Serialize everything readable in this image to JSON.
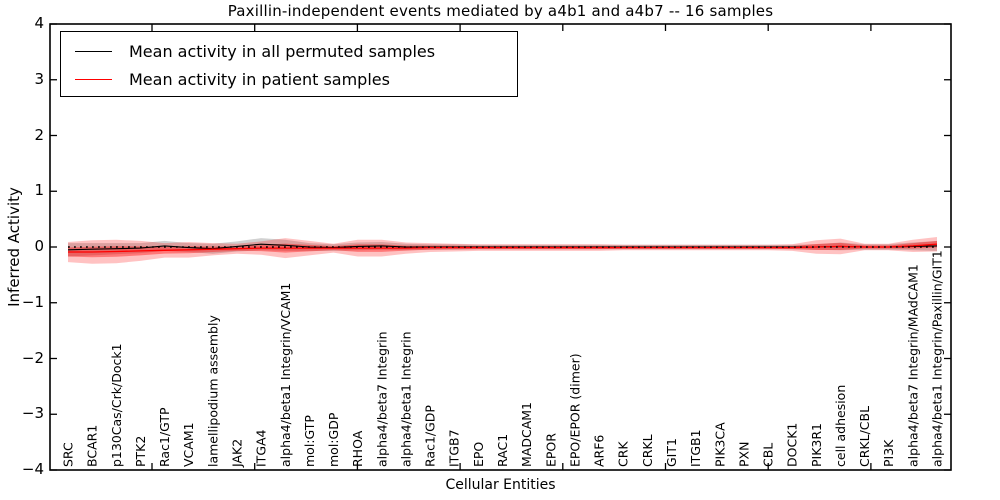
{
  "title": "Paxillin-independent events mediated by a4b1 and a4b7 -- 16 samples",
  "axes": {
    "ylabel": "Inferred Activity",
    "xlabel": "Cellular Entities",
    "ytick_labels": [
      "4",
      "3",
      "2",
      "1",
      "0",
      "−1",
      "−2",
      "−3",
      "−4"
    ],
    "ylim": [
      -4,
      4
    ],
    "zero_line_style": "dotted"
  },
  "legend": {
    "position": "upper left",
    "entries": [
      {
        "label": "Mean activity in all permuted samples",
        "color": "#000000"
      },
      {
        "label": "Mean activity in patient samples",
        "color": "#ff0000"
      }
    ]
  },
  "chart_data": {
    "type": "line",
    "title": "Paxillin-independent events mediated by a4b1 and a4b7 -- 16 samples",
    "xlabel": "Cellular Entities",
    "ylabel": "Inferred Activity",
    "ylim": [
      -4,
      4
    ],
    "yticks": [
      4,
      3,
      2,
      1,
      0,
      -1,
      -2,
      -3,
      -4
    ],
    "grid": false,
    "zero_line": true,
    "categories": [
      "SRC",
      "BCAR1",
      "p130Cas/Crk/Dock1",
      "PTK2",
      "Rac1/GTP",
      "VCAM1",
      "lamellipodium assembly",
      "JAK2",
      "ITGA4",
      "alpha4/beta1 Integrin/VCAM1",
      "mol:GTP",
      "mol:GDP",
      "RHOA",
      "alpha4/beta7 Integrin",
      "alpha4/beta1 Integrin",
      "Rac1/GDP",
      "ITGB7",
      "EPO",
      "RAC1",
      "MADCAM1",
      "EPOR",
      "EPO/EPOR (dimer)",
      "ARF6",
      "CRK",
      "CRKL",
      "GIT1",
      "ITGB1",
      "PIK3CA",
      "PXN",
      "CBL",
      "DOCK1",
      "PIK3R1",
      "cell adhesion",
      "CRKL/CBL",
      "PI3K",
      "alpha4/beta7 Integrin/MAdCAM1",
      "alpha4/beta1 Integrin/Paxillin/GIT1"
    ],
    "series": [
      {
        "name": "Mean activity in all permuted samples",
        "color": "#000000",
        "band_color": "rgba(90,90,90,0.28)",
        "values": [
          -0.05,
          -0.04,
          -0.03,
          -0.02,
          0.02,
          -0.01,
          -0.03,
          0.01,
          0.05,
          0.03,
          0.0,
          -0.01,
          0.01,
          0.02,
          0.0,
          0.0,
          0.0,
          0.0,
          0.0,
          0.0,
          0.0,
          0.0,
          0.0,
          0.0,
          0.0,
          0.0,
          0.0,
          0.0,
          0.0,
          0.0,
          0.0,
          0.0,
          0.01,
          0.0,
          0.0,
          0.01,
          0.02
        ],
        "sigma": [
          0.12,
          0.11,
          0.1,
          0.09,
          0.09,
          0.08,
          0.09,
          0.09,
          0.11,
          0.1,
          0.07,
          0.06,
          0.07,
          0.07,
          0.06,
          0.05,
          0.05,
          0.04,
          0.04,
          0.04,
          0.04,
          0.04,
          0.04,
          0.04,
          0.04,
          0.04,
          0.04,
          0.04,
          0.04,
          0.04,
          0.04,
          0.05,
          0.07,
          0.05,
          0.05,
          0.07,
          0.09
        ]
      },
      {
        "name": "Mean activity in patient samples",
        "color": "#ff0000",
        "band_color": "rgba(255,0,0,0.24)",
        "inner_band_color": "rgba(255,0,0,0.38)",
        "values": [
          -0.09,
          -0.09,
          -0.08,
          -0.07,
          -0.06,
          -0.05,
          -0.04,
          -0.03,
          -0.02,
          -0.02,
          -0.02,
          -0.02,
          -0.02,
          -0.02,
          -0.02,
          -0.01,
          -0.01,
          -0.01,
          -0.01,
          -0.01,
          -0.01,
          -0.01,
          -0.01,
          -0.01,
          -0.01,
          -0.01,
          -0.01,
          -0.01,
          -0.01,
          -0.01,
          -0.01,
          0.0,
          0.01,
          0.0,
          0.0,
          0.02,
          0.05
        ],
        "sigma": [
          0.18,
          0.21,
          0.21,
          0.18,
          0.13,
          0.14,
          0.11,
          0.09,
          0.12,
          0.18,
          0.13,
          0.08,
          0.15,
          0.15,
          0.1,
          0.08,
          0.07,
          0.06,
          0.06,
          0.06,
          0.06,
          0.06,
          0.06,
          0.05,
          0.05,
          0.05,
          0.05,
          0.05,
          0.05,
          0.05,
          0.06,
          0.12,
          0.14,
          0.06,
          0.06,
          0.11,
          0.13
        ]
      }
    ]
  }
}
